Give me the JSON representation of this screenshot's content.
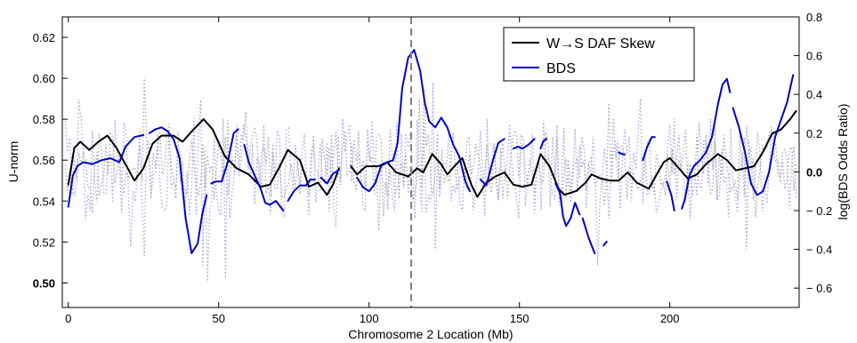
{
  "chart_data": {
    "type": "line",
    "xlabel": "Chromosome 2 Location (Mb)",
    "ylabel": "U-norm",
    "y2label": "log(BDS Odds Ratio)",
    "xlim": [
      -2,
      243
    ],
    "ylim": [
      0.488,
      0.63
    ],
    "y2lim": [
      -0.7,
      0.8
    ],
    "x_ticks": [
      0,
      50,
      100,
      150,
      200
    ],
    "y_ticks": [
      0.5,
      0.52,
      0.54,
      0.56,
      0.58,
      0.6,
      0.62
    ],
    "y_tick_labels": [
      "0.50",
      "0.52",
      "0.54",
      "0.56",
      "0.58",
      "0.60",
      "0.62"
    ],
    "y2_ticks": [
      -0.6,
      -0.4,
      -0.2,
      0.0,
      0.2,
      0.4,
      0.6,
      0.8
    ],
    "y2_tick_labels": [
      "− 0.6",
      "− 0.4",
      "− 0.2",
      "0.0",
      "0.2",
      "0.4",
      "0.6",
      "0.8"
    ],
    "highlight_x": 114,
    "legend": {
      "position": "top-right",
      "entries": [
        "W→S DAF Skew",
        "BDS"
      ]
    },
    "series": [
      {
        "name": "W→S DAF Skew",
        "axis": "left",
        "color": "#000000",
        "style": "solid",
        "segments": [
          [
            [
              0,
              0.548
            ],
            [
              2,
              0.566
            ],
            [
              4,
              0.569
            ],
            [
              7,
              0.565
            ],
            [
              10,
              0.569
            ],
            [
              13,
              0.572
            ],
            [
              16,
              0.566
            ],
            [
              19,
              0.558
            ],
            [
              22,
              0.55
            ],
            [
              25,
              0.556
            ],
            [
              28,
              0.568
            ],
            [
              31,
              0.572
            ],
            [
              35,
              0.572
            ],
            [
              38,
              0.569
            ],
            [
              41,
              0.574
            ],
            [
              45,
              0.58
            ],
            [
              48,
              0.575
            ],
            [
              52,
              0.562
            ],
            [
              56,
              0.556
            ],
            [
              60,
              0.553
            ],
            [
              64,
              0.547
            ],
            [
              67,
              0.548
            ],
            [
              70,
              0.556
            ],
            [
              73,
              0.565
            ],
            [
              77,
              0.56
            ],
            [
              80,
              0.547
            ],
            [
              83,
              0.549
            ],
            [
              86,
              0.543
            ],
            [
              88,
              0.548
            ],
            [
              90,
              0.556
            ]
          ],
          [
            [
              94,
              0.557
            ],
            [
              96,
              0.553
            ],
            [
              99,
              0.557
            ],
            [
              103,
              0.557
            ],
            [
              106,
              0.559
            ],
            [
              109,
              0.554
            ],
            [
              113,
              0.552
            ],
            [
              116,
              0.556
            ],
            [
              118,
              0.554
            ],
            [
              121,
              0.563
            ],
            [
              124,
              0.558
            ],
            [
              126,
              0.553
            ],
            [
              129,
              0.558
            ],
            [
              131,
              0.561
            ],
            [
              134,
              0.548
            ],
            [
              136,
              0.542
            ],
            [
              139,
              0.549
            ],
            [
              142,
              0.552
            ],
            [
              145,
              0.554
            ],
            [
              148,
              0.548
            ],
            [
              151,
              0.547
            ],
            [
              154,
              0.548
            ],
            [
              157,
              0.563
            ],
            [
              160,
              0.557
            ],
            [
              163,
              0.546
            ],
            [
              165,
              0.543
            ],
            [
              169,
              0.545
            ],
            [
              172,
              0.549
            ],
            [
              174,
              0.553
            ],
            [
              177,
              0.551
            ],
            [
              180,
              0.55
            ],
            [
              183,
              0.55
            ],
            [
              186,
              0.554
            ],
            [
              189,
              0.549
            ],
            [
              193,
              0.546
            ],
            [
              196,
              0.554
            ],
            [
              198,
              0.559
            ],
            [
              200,
              0.561
            ],
            [
              203,
              0.556
            ],
            [
              206,
              0.551
            ],
            [
              209,
              0.553
            ],
            [
              212,
              0.558
            ],
            [
              216,
              0.563
            ],
            [
              219,
              0.56
            ],
            [
              222,
              0.555
            ],
            [
              225,
              0.556
            ],
            [
              228,
              0.557
            ],
            [
              231,
              0.564
            ],
            [
              234,
              0.573
            ],
            [
              237,
              0.575
            ],
            [
              240,
              0.58
            ],
            [
              242,
              0.584
            ]
          ]
        ]
      },
      {
        "name": "BDS",
        "axis": "right",
        "color": "#0000cc",
        "style": "solid",
        "segments": [
          [
            [
              0,
              -0.18
            ],
            [
              1.5,
              -0.02
            ],
            [
              3,
              0.03
            ],
            [
              5,
              0.05
            ],
            [
              8,
              0.04
            ],
            [
              11,
              0.06
            ],
            [
              14,
              0.07
            ],
            [
              17,
              0.05
            ],
            [
              19,
              0.13
            ],
            [
              22,
              0.18
            ],
            [
              25,
              0.19
            ]
          ],
          [
            [
              27,
              0.2
            ],
            [
              29,
              0.22
            ],
            [
              31,
              0.23
            ],
            [
              33,
              0.21
            ],
            [
              35,
              0.17
            ],
            [
              37,
              0.07
            ],
            [
              39,
              -0.24
            ],
            [
              41,
              -0.42
            ],
            [
              43,
              -0.37
            ],
            [
              44.5,
              -0.22
            ],
            [
              46,
              -0.12
            ]
          ],
          [
            [
              47.5,
              -0.06
            ],
            [
              49,
              -0.05
            ],
            [
              51,
              -0.05
            ],
            [
              53,
              0.05
            ],
            [
              55,
              0.2
            ],
            [
              56.5,
              0.22
            ]
          ],
          [
            [
              58.5,
              0.14
            ],
            [
              60,
              0.05
            ],
            [
              62,
              -0.02
            ],
            [
              64,
              -0.09
            ],
            [
              65.5,
              -0.16
            ],
            [
              67,
              -0.17
            ],
            [
              69,
              -0.15
            ],
            [
              71.5,
              -0.2
            ]
          ],
          [
            [
              73,
              -0.15
            ],
            [
              75,
              -0.1
            ],
            [
              77,
              -0.07
            ],
            [
              79,
              -0.07
            ],
            [
              80.5,
              -0.04
            ],
            [
              82,
              -0.04
            ]
          ],
          [
            [
              84,
              -0.03
            ],
            [
              86,
              -0.06
            ],
            [
              88,
              -0.01
            ],
            [
              90,
              0.01
            ]
          ],
          [
            [
              96,
              -0.03
            ],
            [
              98,
              -0.08
            ],
            [
              100,
              -0.1
            ],
            [
              102,
              -0.06
            ],
            [
              104,
              0.03
            ],
            [
              106,
              0.05
            ],
            [
              108,
              0.06
            ],
            [
              109.5,
              0.15
            ],
            [
              111,
              0.43
            ],
            [
              113,
              0.59
            ],
            [
              115,
              0.63
            ],
            [
              117,
              0.52
            ],
            [
              118.5,
              0.36
            ],
            [
              120,
              0.26
            ],
            [
              122,
              0.23
            ],
            [
              124,
              0.28
            ],
            [
              126,
              0.23
            ],
            [
              128,
              0.14
            ],
            [
              130,
              0.08
            ],
            [
              132,
              -0.05
            ],
            [
              133.5,
              -0.1
            ]
          ],
          [
            [
              137,
              -0.04
            ],
            [
              139,
              -0.07
            ],
            [
              141,
              0.05
            ],
            [
              143,
              0.15
            ],
            [
              145,
              0.17
            ]
          ],
          [
            [
              148,
              0.12
            ],
            [
              149.5,
              0.13
            ],
            [
              151,
              0.12
            ],
            [
              153,
              0.14
            ],
            [
              155,
              0.17
            ]
          ],
          [
            [
              157,
              0.12
            ],
            [
              158,
              0.16
            ],
            [
              159,
              0.17
            ]
          ],
          [
            [
              162,
              -0.06
            ],
            [
              163.5,
              -0.11
            ],
            [
              164.5,
              -0.23
            ],
            [
              165.5,
              -0.28
            ],
            [
              167,
              -0.24
            ],
            [
              168.5,
              -0.16
            ],
            [
              170,
              -0.22
            ]
          ],
          [
            [
              171,
              -0.24
            ],
            [
              173,
              -0.34
            ],
            [
              175,
              -0.42
            ]
          ],
          [
            [
              178,
              -0.38
            ],
            [
              179,
              -0.36
            ]
          ],
          [
            [
              183,
              0.1
            ],
            [
              184.5,
              0.09
            ],
            [
              185,
              0.09
            ]
          ],
          [
            [
              191,
              0.06
            ],
            [
              192.5,
              0.13
            ],
            [
              194,
              0.18
            ],
            [
              195,
              0.18
            ]
          ],
          [
            [
              199,
              -0.05
            ],
            [
              200.5,
              -0.12
            ],
            [
              201.5,
              -0.2
            ]
          ],
          [
            [
              204,
              -0.19
            ],
            [
              205,
              -0.14
            ],
            [
              206.5,
              -0.02
            ],
            [
              208,
              0.03
            ],
            [
              210,
              0.06
            ],
            [
              212,
              0.1
            ],
            [
              214,
              0.18
            ],
            [
              216,
              0.35
            ],
            [
              217.5,
              0.45
            ],
            [
              219,
              0.48
            ],
            [
              220,
              0.41
            ]
          ],
          [
            [
              221,
              0.33
            ],
            [
              223,
              0.23
            ],
            [
              225,
              0.1
            ],
            [
              227,
              -0.06
            ],
            [
              229,
              -0.12
            ],
            [
              231,
              -0.1
            ],
            [
              233,
              0.0
            ],
            [
              235,
              0.18
            ],
            [
              237,
              0.27
            ],
            [
              239,
              0.36
            ],
            [
              241,
              0.5
            ]
          ]
        ]
      },
      {
        "name": "",
        "axis": "left",
        "color": "#a8a8a8",
        "style": "dotted",
        "seed": 7,
        "base": 0.558,
        "amplitude": 0.032
      },
      {
        "name": "",
        "axis": "left",
        "color": "#a8a8e8",
        "style": "dotted",
        "seed": 19,
        "base": 0.556,
        "amplitude": 0.045
      }
    ]
  }
}
